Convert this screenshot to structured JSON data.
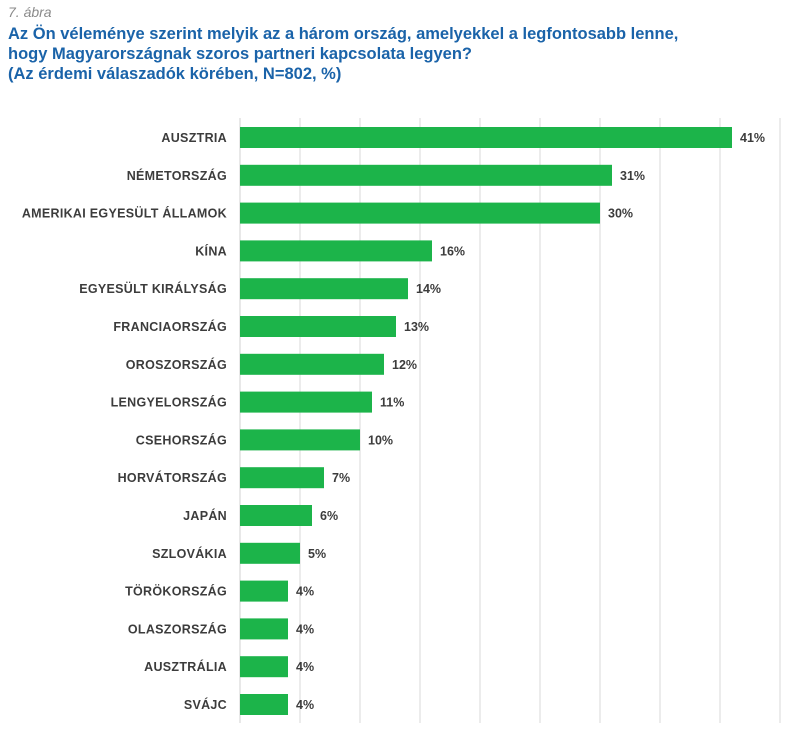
{
  "figure": {
    "label": "7. ábra",
    "title_lines": [
      "Az Ön véleménye szerint melyik az a három ország, amelyekkel a legfontosabb lenne,",
      "hogy Magyarországnak szoros partneri kapcsolata legyen?",
      "(Az érdemi válaszadók körében, N=802, %)"
    ]
  },
  "colors": {
    "bar": "#1cb44a",
    "grid": "#d9d9d9",
    "title": "#1a63a9"
  },
  "chart_data": {
    "type": "bar",
    "orientation": "horizontal",
    "categories": [
      "AUSZTRIA",
      "NÉMETORSZÁG",
      "AMERIKAI EGYESÜLT ÁLLAMOK",
      "KÍNA",
      "EGYESÜLT KIRÁLYSÁG",
      "FRANCIAORSZÁG",
      "OROSZORSZÁG",
      "LENGYELORSZÁG",
      "CSEHORSZÁG",
      "HORVÁTORSZÁG",
      "JAPÁN",
      "SZLOVÁKIA",
      "TÖRÖKORSZÁG",
      "OLASZORSZÁG",
      "AUSZTRÁLIA",
      "SVÁJC"
    ],
    "values": [
      41,
      31,
      30,
      16,
      14,
      13,
      12,
      11,
      10,
      7,
      6,
      5,
      4,
      4,
      4,
      4
    ],
    "value_labels": [
      "41%",
      "31%",
      "30%",
      "16%",
      "14%",
      "13%",
      "12%",
      "11%",
      "10%",
      "7%",
      "6%",
      "5%",
      "4%",
      "4%",
      "4%",
      "4%"
    ],
    "xlim": [
      0,
      45
    ],
    "grid": true
  }
}
